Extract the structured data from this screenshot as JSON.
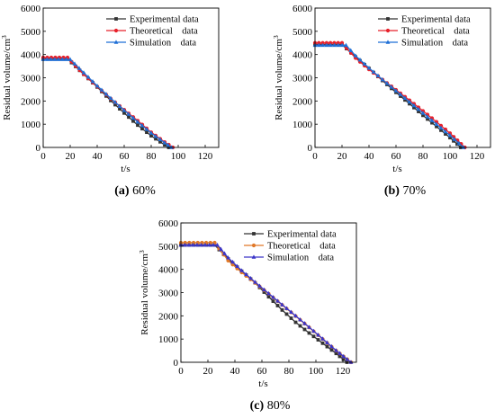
{
  "chart_data": [
    {
      "type": "line",
      "caption_label": "(a)",
      "caption_value": "60%",
      "xlabel": "t/s",
      "ylabel": "Residual volume/cm",
      "ylabel_superscript": "3",
      "xlim": [
        0,
        130
      ],
      "ylim": [
        0,
        6000
      ],
      "xticks": [
        0,
        20,
        40,
        60,
        80,
        100,
        120
      ],
      "yticks": [
        0,
        1000,
        2000,
        3000,
        4000,
        5000,
        6000
      ],
      "legend_position": "top-right",
      "series": [
        {
          "name": "Experimental data",
          "color": "#333333",
          "marker": "square",
          "x": [
            0,
            18,
            30,
            40,
            50,
            60,
            70,
            80,
            90,
            93
          ],
          "y": [
            3820,
            3820,
            3150,
            2600,
            2020,
            1480,
            960,
            500,
            110,
            0
          ]
        },
        {
          "name": "Theoretical    data",
          "color": "#e8212b",
          "marker": "circle",
          "x": [
            0,
            18,
            30,
            40,
            50,
            60,
            70,
            80,
            90,
            96
          ],
          "y": [
            3870,
            3870,
            3150,
            2620,
            2100,
            1620,
            1150,
            650,
            230,
            0
          ]
        },
        {
          "name": "Simulation    data",
          "color": "#1f6fd6",
          "marker": "triangle",
          "x": [
            0,
            20,
            30,
            40,
            50,
            60,
            70,
            80,
            90,
            95
          ],
          "y": [
            3790,
            3790,
            3220,
            2650,
            2120,
            1600,
            1100,
            620,
            200,
            0
          ]
        }
      ]
    },
    {
      "type": "line",
      "caption_label": "(b)",
      "caption_value": "70%",
      "xlabel": "t/s",
      "ylabel": "Residual volume/cm",
      "ylabel_superscript": "3",
      "xlim": [
        0,
        130
      ],
      "ylim": [
        0,
        6000
      ],
      "xticks": [
        0,
        20,
        40,
        60,
        80,
        100,
        120
      ],
      "yticks": [
        0,
        1000,
        2000,
        3000,
        4000,
        5000,
        6000
      ],
      "legend_position": "top-right",
      "series": [
        {
          "name": "Experimental data",
          "color": "#333333",
          "marker": "square",
          "x": [
            0,
            20,
            30,
            40,
            50,
            60,
            70,
            80,
            90,
            100,
            108
          ],
          "y": [
            4430,
            4430,
            3900,
            3400,
            2880,
            2370,
            1880,
            1380,
            900,
            420,
            0
          ]
        },
        {
          "name": "Theoretical    data",
          "color": "#e8212b",
          "marker": "circle",
          "x": [
            0,
            20,
            30,
            40,
            50,
            60,
            70,
            80,
            90,
            100,
            111
          ],
          "y": [
            4500,
            4500,
            3850,
            3360,
            2920,
            2480,
            2030,
            1570,
            1100,
            610,
            0
          ]
        },
        {
          "name": "Simulation    data",
          "color": "#1f6fd6",
          "marker": "triangle",
          "x": [
            0,
            23,
            30,
            40,
            50,
            60,
            70,
            80,
            90,
            100,
            110
          ],
          "y": [
            4400,
            4400,
            3950,
            3420,
            2920,
            2440,
            1960,
            1480,
            1000,
            520,
            0
          ]
        }
      ]
    },
    {
      "type": "line",
      "caption_label": "(c)",
      "caption_value": "80%",
      "xlabel": "t/s",
      "ylabel": "Residual volume/cm",
      "ylabel_superscript": "3",
      "xlim": [
        0,
        130
      ],
      "ylim": [
        0,
        6000
      ],
      "xticks": [
        0,
        20,
        40,
        60,
        80,
        100,
        120
      ],
      "yticks": [
        0,
        1000,
        2000,
        3000,
        4000,
        5000,
        6000
      ],
      "legend_position": "top-right",
      "series": [
        {
          "name": "Experimental data",
          "color": "#333333",
          "marker": "square",
          "x": [
            0,
            25,
            35,
            45,
            55,
            65,
            75,
            85,
            95,
            105,
            115,
            123
          ],
          "y": [
            5050,
            5050,
            4450,
            3920,
            3420,
            2820,
            2250,
            1720,
            1260,
            820,
            380,
            0
          ]
        },
        {
          "name": "Theoretical    data",
          "color": "#e07828",
          "marker": "circle",
          "x": [
            0,
            25,
            35,
            45,
            55,
            65,
            75,
            85,
            95,
            105,
            115,
            126
          ],
          "y": [
            5150,
            5150,
            4380,
            3870,
            3420,
            2950,
            2470,
            1990,
            1500,
            1000,
            500,
            0
          ]
        },
        {
          "name": "Simulation    data",
          "color": "#3a35c8",
          "marker": "triangle",
          "x": [
            0,
            27,
            35,
            45,
            55,
            65,
            75,
            85,
            95,
            105,
            115,
            126
          ],
          "y": [
            5050,
            5050,
            4500,
            3950,
            3450,
            2960,
            2480,
            2000,
            1510,
            1010,
            510,
            0
          ]
        }
      ]
    }
  ]
}
